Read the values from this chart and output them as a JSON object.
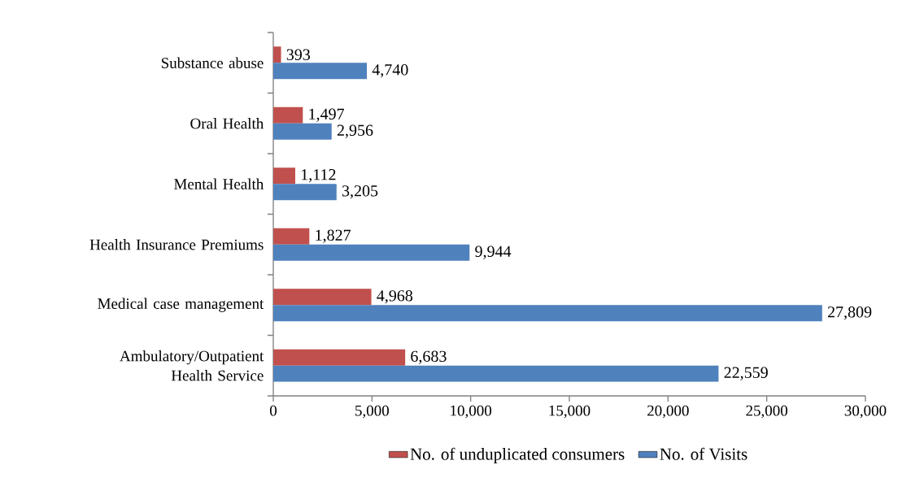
{
  "chart_data": {
    "type": "bar",
    "orientation": "horizontal",
    "categories": [
      "Substance abuse",
      "Oral Health",
      "Mental Health",
      "Health Insurance Premiums",
      "Medical case management",
      "Ambulatory/Outpatient Health Service"
    ],
    "series": [
      {
        "name": "No. of unduplicated consumers",
        "color": "#c0504d",
        "values": [
          393,
          1497,
          1112,
          1827,
          4968,
          6683
        ],
        "value_labels": [
          "393",
          "1,497",
          "1,112",
          "1,827",
          "4,968",
          "6,683"
        ]
      },
      {
        "name": "No. of Visits",
        "color": "#4f81bd",
        "values": [
          4740,
          2956,
          3205,
          9944,
          27809,
          22559
        ],
        "value_labels": [
          "4,740",
          "2,956",
          "3,205",
          "9,944",
          "27,809",
          "22,559"
        ]
      }
    ],
    "xlim": [
      0,
      30000
    ],
    "xticks": [
      0,
      {
        "value": 5000,
        "label": "5,000"
      },
      {
        "value": 10000,
        "label": "10,000"
      },
      {
        "value": 15000,
        "label": "15,000"
      },
      {
        "value": 20000,
        "label": "20,000"
      },
      {
        "value": 25000,
        "label": "25,000"
      },
      {
        "value": 30000,
        "label": "30,000"
      }
    ],
    "grid": false,
    "legend": "bottom"
  }
}
